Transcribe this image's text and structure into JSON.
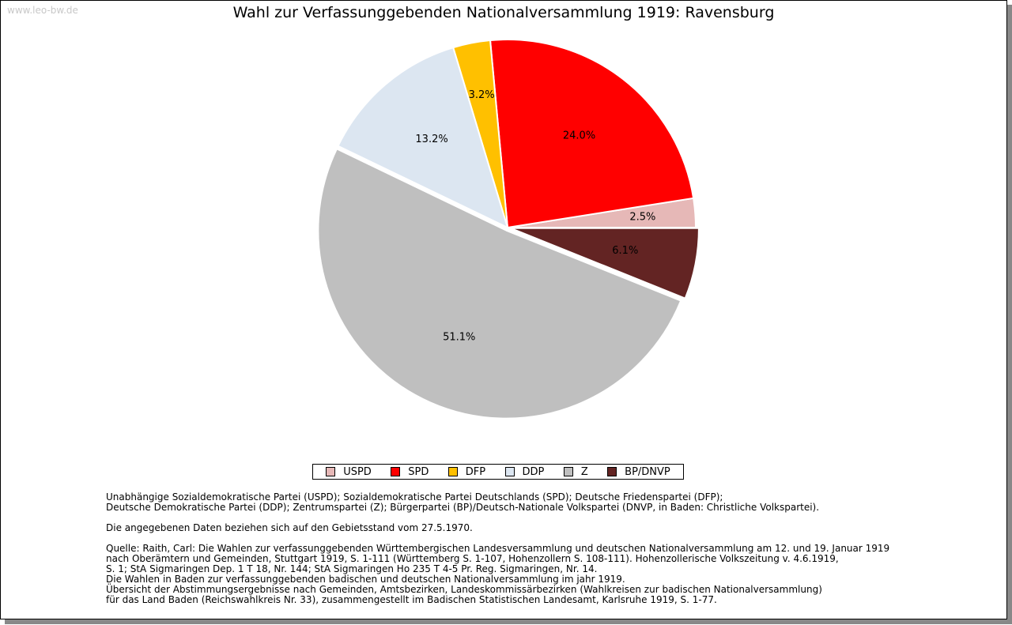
{
  "watermark": "www.leo-bw.de",
  "chart_data": {
    "type": "pie",
    "title": "Wahl zur Verfassunggebenden Nationalversammlung 1919: Ravensburg",
    "legend_position": "bottom",
    "categories": [
      "USPD",
      "SPD",
      "DFP",
      "DDP",
      "Z",
      "BP/DNVP"
    ],
    "values": [
      2.5,
      24.0,
      3.2,
      13.2,
      51.1,
      6.1
    ],
    "labels": [
      "2.5%",
      "24.0%",
      "3.2%",
      "13.2%",
      "51.1%",
      "6.1%"
    ],
    "colors": [
      "#e6b8b7",
      "#ff0000",
      "#ffc000",
      "#dce6f1",
      "#bfbfbf",
      "#632423"
    ]
  },
  "notes": [
    "Unabhängige Sozialdemokratische Partei (USPD); Sozialdemokratische Partei Deutschlands (SPD); Deutsche Friedenspartei (DFP);",
    "Deutsche Demokratische Partei (DDP); Zentrumspartei (Z); Bürgerpartei (BP)/Deutsch-Nationale Volkspartei (DNVP, in Baden: Christliche Volkspartei).",
    "",
    "Die angegebenen Daten beziehen sich auf den Gebietsstand vom 27.5.1970.",
    "",
    "Quelle: Raith, Carl: Die Wahlen zur verfassunggebenden Württembergischen Landesversammlung und deutschen Nationalversammlung am 12. und 19. Januar 1919",
    "nach Oberämtern und Gemeinden, Stuttgart 1919, S. 1-111 (Württemberg S. 1-107, Hohenzollern S. 108-111). Hohenzollerische Volkszeitung v. 4.6.1919,",
    "S. 1; StA Sigmaringen Dep. 1 T 18, Nr. 144; StA Sigmaringen Ho 235 T 4-5 Pr. Reg. Sigmaringen, Nr. 14.",
    "Die Wahlen in Baden zur verfassunggebenden badischen und deutschen Nationalversammlung im jahr 1919.",
    "Übersicht der Abstimmungsergebnisse nach Gemeinden, Amtsbezirken, Landeskommissärbezirken (Wahlkreisen zur badischen Nationalversammlung)",
    "für das Land Baden (Reichswahlkreis Nr. 33), zusammengestellt im Badischen Statistischen Landesamt, Karlsruhe 1919, S. 1-77."
  ]
}
